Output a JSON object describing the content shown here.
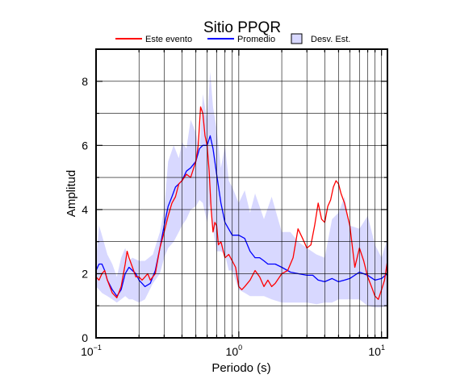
{
  "chart_data": {
    "type": "line",
    "title": "Sitio PPQR",
    "xlabel": "Periodo (s)",
    "ylabel": "Amplitud",
    "xscale": "log",
    "xlim": [
      0.1,
      11
    ],
    "ylim": [
      0,
      9
    ],
    "yticks": [
      0,
      2,
      4,
      6,
      8
    ],
    "grid": true,
    "legend_position": "top",
    "x_tick_labels": [
      {
        "value": 0.1,
        "base": "10",
        "exp": "−1"
      },
      {
        "value": 1,
        "base": "10",
        "exp": "0"
      },
      {
        "value": 10,
        "base": "10",
        "exp": "1"
      }
    ],
    "legend": [
      {
        "label": "Este evento",
        "kind": "line",
        "color": "#ff0000"
      },
      {
        "label": "Promedio",
        "kind": "line",
        "color": "#0000ff"
      },
      {
        "label": "Desv. Est.",
        "kind": "band",
        "color": "#d8d8ff"
      }
    ],
    "band": {
      "name": "Desv. Est.",
      "color": "#d8d8ff",
      "x": [
        0.1,
        0.105,
        0.11,
        0.12,
        0.13,
        0.14,
        0.15,
        0.16,
        0.17,
        0.18,
        0.2,
        0.22,
        0.25,
        0.28,
        0.3,
        0.32,
        0.35,
        0.38,
        0.4,
        0.43,
        0.46,
        0.5,
        0.53,
        0.56,
        0.6,
        0.63,
        0.66,
        0.7,
        0.75,
        0.8,
        0.85,
        0.9,
        1.0,
        1.1,
        1.2,
        1.3,
        1.5,
        1.7,
        2.0,
        2.3,
        2.6,
        3.0,
        3.5,
        4.0,
        4.5,
        5.0,
        5.5,
        6.0,
        7.0,
        8.0,
        9.0,
        10.0,
        11.0
      ],
      "upper": [
        2.4,
        3.5,
        3.2,
        2.6,
        2.3,
        1.9,
        2.5,
        2.8,
        2.4,
        2.5,
        2.4,
        2.4,
        2.6,
        3.3,
        4.0,
        5.5,
        6.0,
        5.6,
        6.1,
        5.9,
        6.8,
        6.4,
        5.8,
        7.6,
        6.8,
        8.3,
        7.2,
        6.5,
        5.3,
        6.0,
        4.9,
        4.7,
        4.2,
        4.6,
        3.9,
        4.5,
        3.7,
        4.4,
        3.3,
        3.3,
        3.0,
        2.8,
        2.6,
        2.5,
        3.7,
        3.9,
        4.4,
        3.5,
        3.4,
        3.8,
        2.9,
        2.5,
        3.1
      ],
      "lower": [
        1.6,
        1.5,
        1.4,
        1.3,
        1.2,
        1.1,
        1.2,
        1.3,
        1.2,
        1.2,
        1.1,
        1.2,
        1.7,
        2.0,
        2.5,
        2.8,
        3.0,
        3.3,
        3.5,
        3.7,
        4.0,
        4.1,
        4.3,
        4.2,
        3.6,
        4.2,
        3.4,
        2.7,
        2.7,
        2.6,
        2.1,
        2.1,
        1.5,
        1.4,
        1.3,
        1.3,
        1.3,
        1.2,
        1.1,
        1.1,
        1.1,
        1.1,
        1.05,
        1.1,
        1.1,
        1.2,
        1.2,
        1.2,
        1.2,
        1.0,
        0.95,
        0.95,
        1.0
      ]
    },
    "series": [
      {
        "name": "Promedio",
        "color": "#0000ff",
        "x": [
          0.1,
          0.105,
          0.11,
          0.115,
          0.12,
          0.13,
          0.14,
          0.15,
          0.16,
          0.17,
          0.18,
          0.19,
          0.2,
          0.21,
          0.22,
          0.24,
          0.26,
          0.28,
          0.3,
          0.32,
          0.34,
          0.36,
          0.38,
          0.4,
          0.43,
          0.46,
          0.5,
          0.53,
          0.56,
          0.6,
          0.63,
          0.66,
          0.7,
          0.75,
          0.8,
          0.9,
          1.0,
          1.1,
          1.2,
          1.3,
          1.4,
          1.5,
          1.6,
          1.8,
          2.0,
          2.3,
          2.6,
          3.0,
          3.3,
          3.6,
          4.0,
          4.5,
          5.0,
          5.5,
          6.0,
          7.0,
          8.0,
          9.0,
          10.0,
          11.0
        ],
        "y": [
          2.1,
          2.3,
          2.3,
          2.1,
          1.8,
          1.5,
          1.3,
          1.5,
          2.0,
          2.2,
          2.1,
          2.0,
          1.8,
          1.7,
          1.6,
          1.7,
          2.1,
          2.8,
          3.5,
          4.1,
          4.4,
          4.7,
          4.8,
          4.9,
          5.2,
          5.3,
          5.5,
          5.9,
          6.0,
          6.0,
          6.3,
          5.9,
          5.1,
          4.2,
          3.6,
          3.2,
          3.2,
          3.1,
          2.7,
          2.5,
          2.5,
          2.4,
          2.3,
          2.3,
          2.2,
          2.05,
          2.0,
          1.95,
          1.95,
          1.8,
          1.75,
          1.85,
          1.75,
          1.8,
          1.85,
          2.05,
          1.95,
          1.8,
          1.85,
          2.0
        ]
      },
      {
        "name": "Este evento",
        "color": "#ff0000",
        "x": [
          0.1,
          0.105,
          0.11,
          0.115,
          0.12,
          0.13,
          0.14,
          0.15,
          0.16,
          0.165,
          0.17,
          0.18,
          0.19,
          0.2,
          0.21,
          0.22,
          0.23,
          0.24,
          0.26,
          0.28,
          0.3,
          0.32,
          0.34,
          0.36,
          0.38,
          0.4,
          0.43,
          0.46,
          0.5,
          0.52,
          0.54,
          0.56,
          0.58,
          0.6,
          0.62,
          0.64,
          0.66,
          0.68,
          0.7,
          0.72,
          0.75,
          0.8,
          0.85,
          0.9,
          0.95,
          1.0,
          1.05,
          1.1,
          1.2,
          1.3,
          1.4,
          1.5,
          1.6,
          1.7,
          1.8,
          2.0,
          2.2,
          2.4,
          2.6,
          2.8,
          3.0,
          3.2,
          3.4,
          3.6,
          3.8,
          4.0,
          4.2,
          4.4,
          4.6,
          4.8,
          5.0,
          5.2,
          5.5,
          6.0,
          6.5,
          7.0,
          7.5,
          8.0,
          8.5,
          9.0,
          9.5,
          10.0,
          10.5,
          11.0
        ],
        "y": [
          1.9,
          1.8,
          2.0,
          2.1,
          1.8,
          1.4,
          1.25,
          1.6,
          2.3,
          2.7,
          2.5,
          2.2,
          1.9,
          1.9,
          1.8,
          1.9,
          2.0,
          1.8,
          2.0,
          2.8,
          3.3,
          3.8,
          4.2,
          4.4,
          4.8,
          4.9,
          5.1,
          5.0,
          5.5,
          6.0,
          7.2,
          7.0,
          6.3,
          6.0,
          5.2,
          4.0,
          3.3,
          3.6,
          3.5,
          2.9,
          3.0,
          2.5,
          2.6,
          2.4,
          2.2,
          1.6,
          1.5,
          1.6,
          1.8,
          2.1,
          1.9,
          1.6,
          1.8,
          1.6,
          1.7,
          2.0,
          2.1,
          2.5,
          3.4,
          3.1,
          2.8,
          2.9,
          3.5,
          4.2,
          3.7,
          3.6,
          4.1,
          4.3,
          4.7,
          4.9,
          4.8,
          4.5,
          4.2,
          3.5,
          2.2,
          2.8,
          2.4,
          1.9,
          1.6,
          1.3,
          1.2,
          1.5,
          1.8,
          2.4
        ]
      }
    ]
  }
}
